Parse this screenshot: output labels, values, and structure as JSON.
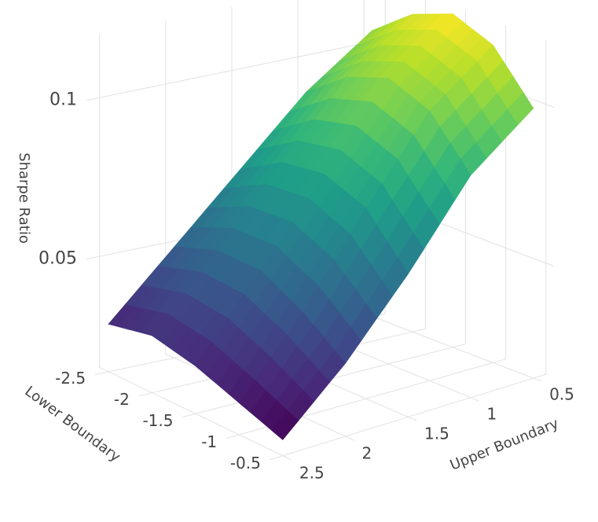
{
  "chart_data": {
    "type": "surface",
    "xaxis_title": "Lower Boundary",
    "yaxis_title": "Upper Boundary",
    "zaxis_title": "Sharpe Ratio",
    "x": [
      -2.5,
      -2,
      -1.5,
      -1,
      -0.5
    ],
    "y": [
      0.5,
      1,
      1.5,
      2,
      2.5
    ],
    "z": [
      [
        0.105,
        0.115,
        0.12,
        0.115,
        0.1
      ],
      [
        0.09,
        0.1,
        0.105,
        0.1,
        0.085
      ],
      [
        0.07,
        0.078,
        0.08,
        0.075,
        0.06
      ],
      [
        0.05,
        0.055,
        0.055,
        0.048,
        0.038
      ],
      [
        0.03,
        0.033,
        0.03,
        0.025,
        0.02
      ]
    ],
    "xlim": [
      -2.6,
      -0.4
    ],
    "ylim": [
      0.4,
      2.6
    ],
    "zlim": [
      0.015,
      0.12
    ],
    "xticks": [
      -2.5,
      -2,
      -1.5,
      -1,
      -0.5
    ],
    "yticks": [
      0.5,
      1,
      1.5,
      2,
      2.5
    ],
    "zticks": [
      0.05,
      0.1
    ],
    "colorscale": "Viridis",
    "grid": true
  }
}
